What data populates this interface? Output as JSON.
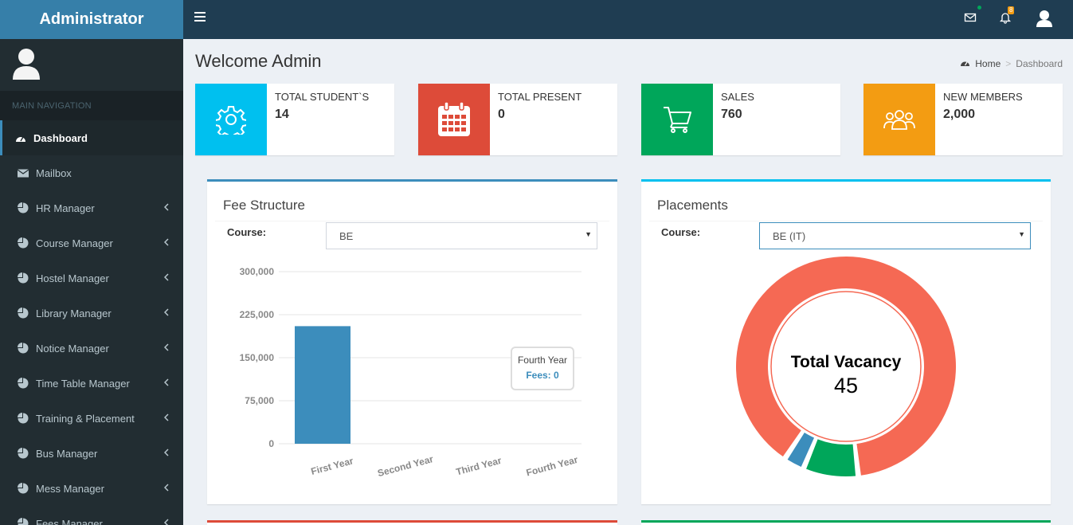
{
  "brand": "Administrator",
  "sidebar": {
    "header": "MAIN NAVIGATION",
    "items": [
      {
        "label": "Dashboard",
        "icon": "dashboard-icon",
        "active": true
      },
      {
        "label": "Mailbox",
        "icon": "envelope-icon"
      },
      {
        "label": "HR Manager",
        "icon": "pie-chart-icon",
        "expandable": true
      },
      {
        "label": "Course Manager",
        "icon": "pie-chart-icon",
        "expandable": true
      },
      {
        "label": "Hostel Manager",
        "icon": "pie-chart-icon",
        "expandable": true
      },
      {
        "label": "Library Manager",
        "icon": "pie-chart-icon",
        "expandable": true
      },
      {
        "label": "Notice Manager",
        "icon": "pie-chart-icon",
        "expandable": true
      },
      {
        "label": "Time Table Manager",
        "icon": "pie-chart-icon",
        "expandable": true
      },
      {
        "label": "Training & Placement",
        "icon": "pie-chart-icon",
        "expandable": true
      },
      {
        "label": "Bus Manager",
        "icon": "pie-chart-icon",
        "expandable": true
      },
      {
        "label": "Mess Manager",
        "icon": "pie-chart-icon",
        "expandable": true
      },
      {
        "label": "Fees Manager",
        "icon": "pie-chart-icon",
        "expandable": true
      }
    ]
  },
  "topbar": {
    "notification_count": "8"
  },
  "page": {
    "title": "Welcome Admin",
    "breadcrumb_home": "Home",
    "breadcrumb_current": "Dashboard"
  },
  "info_boxes": [
    {
      "label": "TOTAL STUDENT`S",
      "value": "14",
      "color": "#00c0ef",
      "icon": "gear-icon"
    },
    {
      "label": "TOTAL PRESENT",
      "value": "0",
      "color": "#dd4b39",
      "icon": "calendar-icon"
    },
    {
      "label": "SALES",
      "value": "760",
      "color": "#00a65a",
      "icon": "cart-icon"
    },
    {
      "label": "NEW MEMBERS",
      "value": "2,000",
      "color": "#f39c12",
      "icon": "users-icon"
    }
  ],
  "fee_structure": {
    "title": "Fee Structure",
    "course_label": "Course:",
    "course_value": "BE",
    "tooltip_title": "Fourth Year",
    "tooltip_value": "Fees: 0"
  },
  "placements": {
    "title": "Placements",
    "course_label": "Course:",
    "course_value": "BE (IT)",
    "center_title": "Total Vacancy",
    "center_value": "45"
  },
  "colors": {
    "accent": "#3c8dbc",
    "bar": "#3c8dbc",
    "donut_main": "#f56954",
    "donut_green": "#00a65a",
    "donut_blue": "#3c8dbc"
  },
  "chart_data": [
    {
      "type": "bar",
      "categories": [
        "First Year",
        "Second Year",
        "Third Year",
        "Fourth Year"
      ],
      "values": [
        205000,
        0,
        0,
        0
      ],
      "ylim": [
        0,
        300000
      ],
      "yticks": [
        0,
        75000,
        150000,
        225000,
        300000
      ],
      "ytick_labels": [
        "0",
        "75,000",
        "150,000",
        "225,000",
        "300,000"
      ],
      "grid": true
    },
    {
      "type": "pie",
      "donut": true,
      "values": [
        88,
        8,
        3
      ]
    }
  ]
}
